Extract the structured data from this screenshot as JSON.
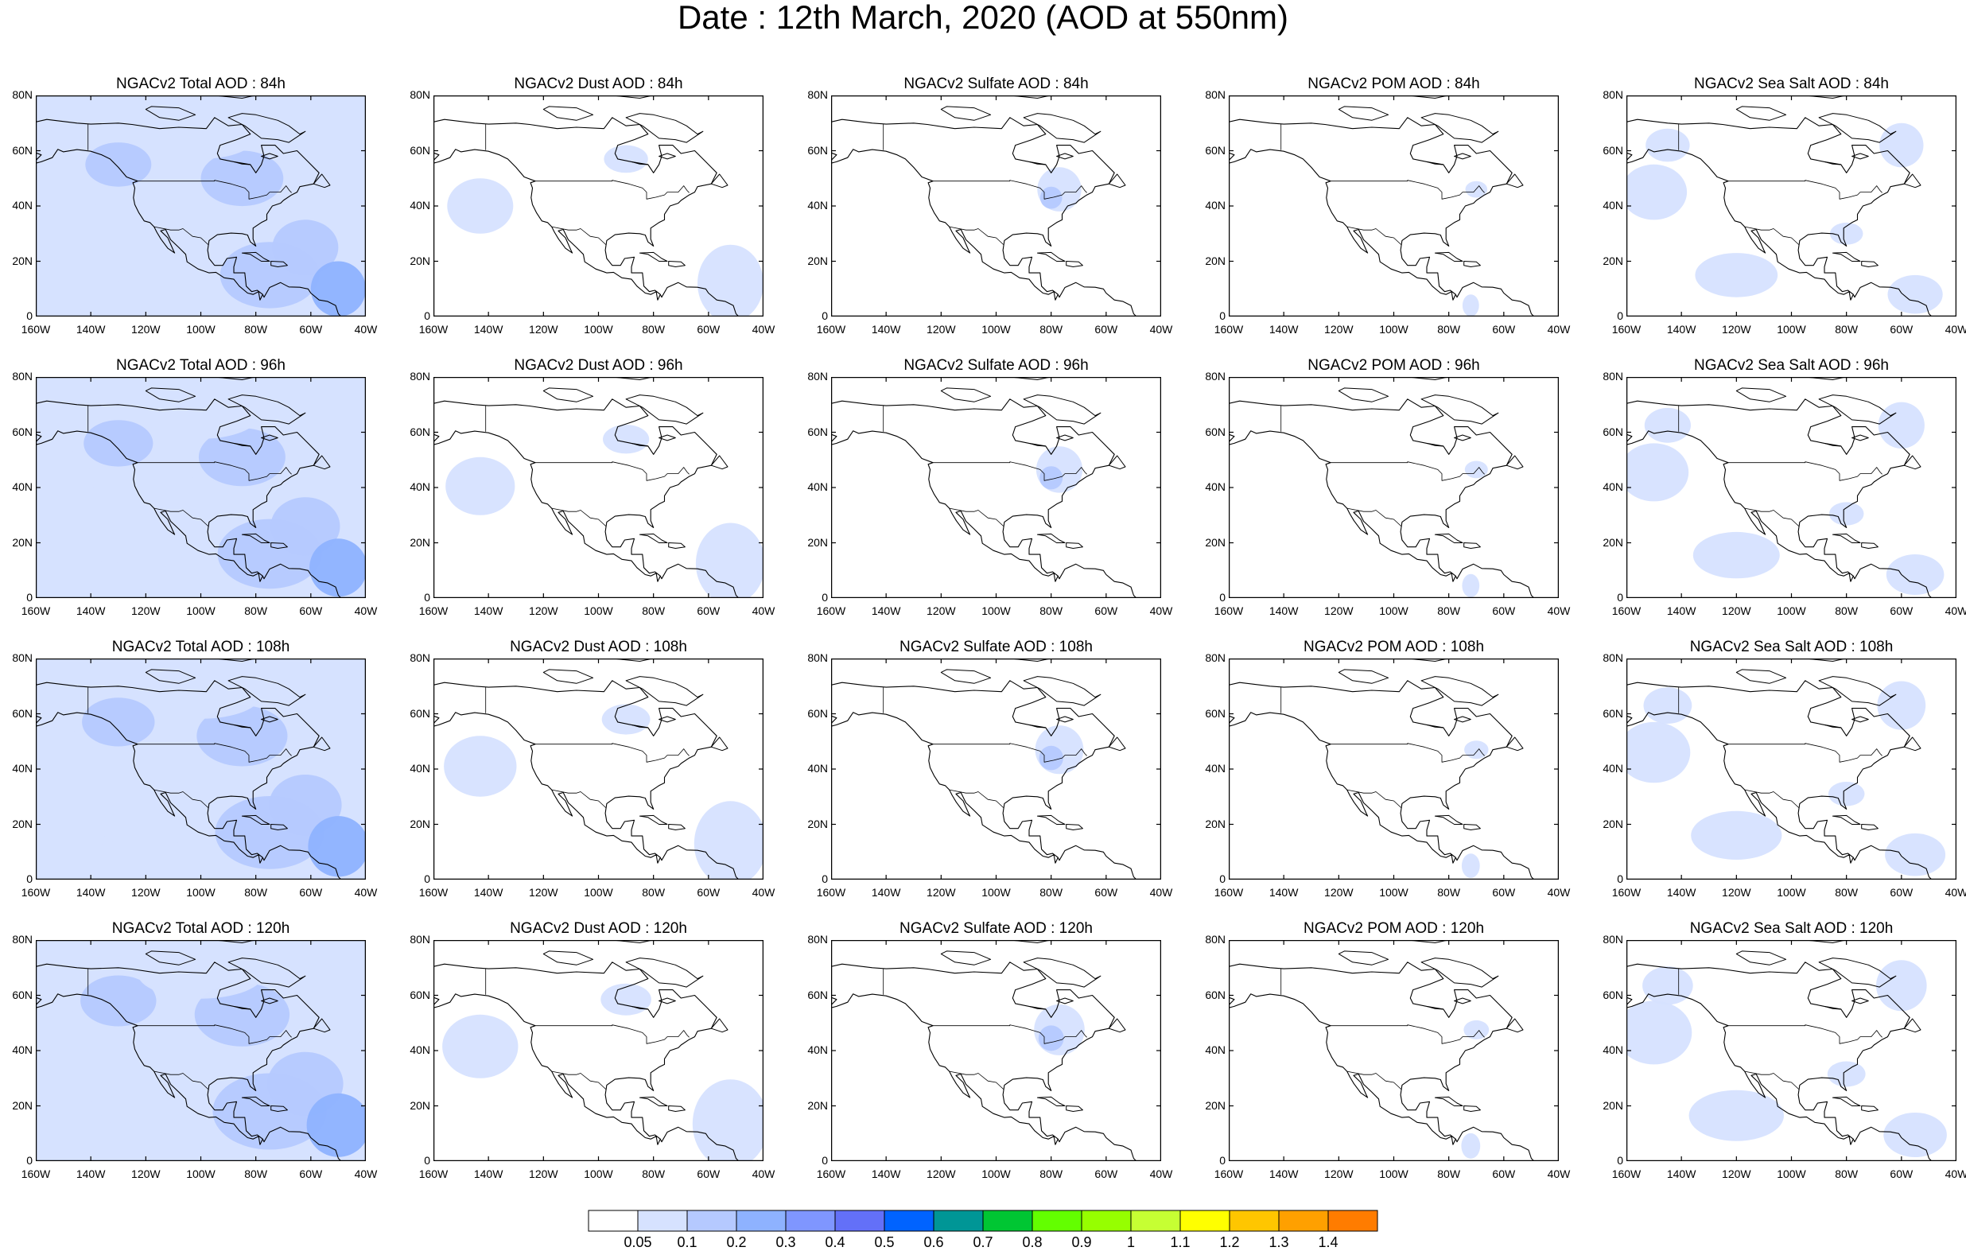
{
  "title": "Date : 12th March, 2020 (AOD at 550nm)",
  "columns": [
    {
      "key": "total",
      "label": "NGACv2 Total AOD"
    },
    {
      "key": "dust",
      "label": "NGACv2 Dust AOD"
    },
    {
      "key": "sulfate",
      "label": "NGACv2 Sulfate AOD"
    },
    {
      "key": "pom",
      "label": "NGACv2 POM AOD"
    },
    {
      "key": "seasalt",
      "label": "NGACv2 Sea Salt AOD"
    }
  ],
  "panels": [
    [
      "NGACv2 Total AOD : 84h",
      "NGACv2 Dust AOD : 84h",
      "NGACv2 Sulfate AOD : 84h",
      "NGACv2 POM AOD : 84h",
      "NGACv2 Sea Salt AOD : 84h"
    ],
    [
      "NGACv2 Total AOD : 96h",
      "NGACv2 Dust AOD : 96h",
      "NGACv2 Sulfate AOD : 96h",
      "NGACv2 POM AOD : 96h",
      "NGACv2 Sea Salt AOD : 96h"
    ],
    [
      "NGACv2 Total AOD : 108h",
      "NGACv2 Dust AOD : 108h",
      "NGACv2 Sulfate AOD : 108h",
      "NGACv2 POM AOD : 108h",
      "NGACv2 Sea Salt AOD : 108h"
    ],
    [
      "NGACv2 Total AOD : 120h",
      "NGACv2 Dust AOD : 120h",
      "NGACv2 Sulfate AOD : 120h",
      "NGACv2 POM AOD : 120h",
      "NGACv2 Sea Salt  AOD : 120h"
    ]
  ],
  "lat_ticks": [
    "80N",
    "60N",
    "40N",
    "20N",
    "0"
  ],
  "lon_ticks": [
    "160W",
    "140W",
    "120W",
    "100W",
    "80W",
    "60W",
    "40W"
  ],
  "colorbar": {
    "labels": [
      "0.05",
      "0.1",
      "0.2",
      "0.3",
      "0.4",
      "0.5",
      "0.6",
      "0.7",
      "0.8",
      "0.9",
      "1",
      "1.1",
      "1.2",
      "1.3",
      "1.4"
    ],
    "colors": [
      "#ffffff",
      "#d6e2ff",
      "#b5c9ff",
      "#8eb2ff",
      "#7f96ff",
      "#6370f8",
      "#0063ff",
      "#009696",
      "#00c633",
      "#63ff00",
      "#96ff00",
      "#c6ff33",
      "#ffff00",
      "#ffc600",
      "#ffa000",
      "#ff7c00",
      "#ff1900"
    ]
  }
}
